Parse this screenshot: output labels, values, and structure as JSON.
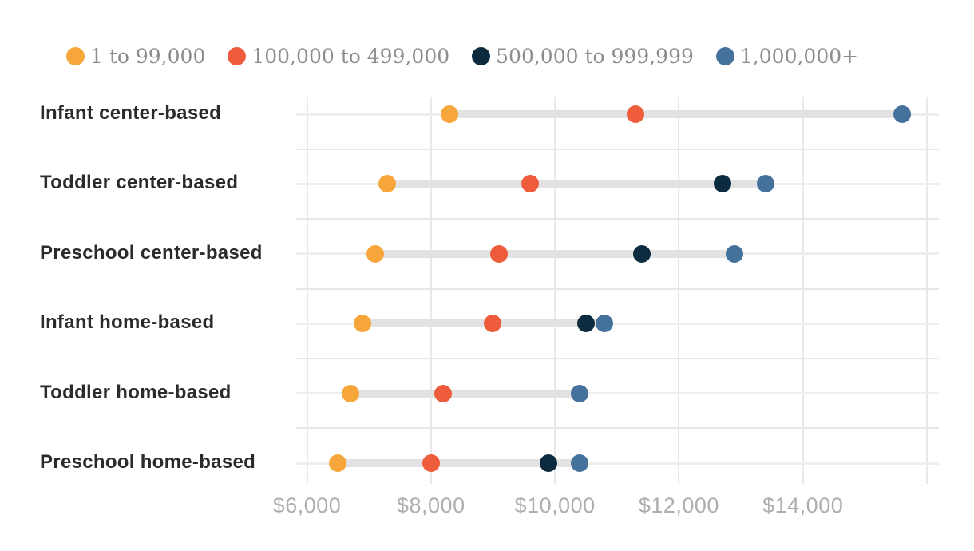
{
  "page": {
    "background": "#ffffff"
  },
  "colors": {
    "group_1_to_99000": "#f7a63c",
    "group_100000_to_499000": "#ee5c3b",
    "group_500000_to_999999": "#0d2b3e",
    "group_1000000_plus": "#45719d",
    "category_label": "#2b2b2b",
    "legend_text": "#8d8d8d",
    "axis_text": "#aeaeae",
    "gridline": "#e9e9e9",
    "range_bar": "#e2e2e2"
  },
  "chart_data": {
    "type": "scatter",
    "subtype": "dumbbell-dot-plot",
    "title": "",
    "xlabel": "",
    "ylabel": "",
    "grid": true,
    "legend_position": "top",
    "categories": [
      "Infant center-based",
      "Toddler center-based",
      "Preschool center-based",
      "Infant home-based",
      "Toddler home-based",
      "Preschool home-based"
    ],
    "series": [
      {
        "name": "1 to 99,000",
        "color": "#f7a63c",
        "values": [
          8300,
          7300,
          7100,
          6900,
          6700,
          6500
        ]
      },
      {
        "name": "100,000 to 499,000",
        "color": "#ee5c3b",
        "values": [
          11300,
          9600,
          9100,
          9000,
          8200,
          8000
        ]
      },
      {
        "name": "500,000 to 999,999",
        "color": "#0d2b3e",
        "values": [
          null,
          12700,
          11400,
          10500,
          null,
          9900
        ]
      },
      {
        "name": "1,000,000+",
        "color": "#45719d",
        "values": [
          15600,
          13400,
          12900,
          10800,
          10400,
          10400
        ]
      }
    ],
    "x_ticks": [
      {
        "value": 6000,
        "label": "$6,000"
      },
      {
        "value": 8000,
        "label": "$8,000"
      },
      {
        "value": 10000,
        "label": "$10,000"
      },
      {
        "value": 12000,
        "label": "$12,000"
      },
      {
        "value": 14000,
        "label": "$14,000"
      },
      {
        "value": 16000,
        "label": ""
      }
    ],
    "xlim": [
      5900,
      16200
    ],
    "connector": "gray range bar from minimum to maximum value in each category row"
  }
}
